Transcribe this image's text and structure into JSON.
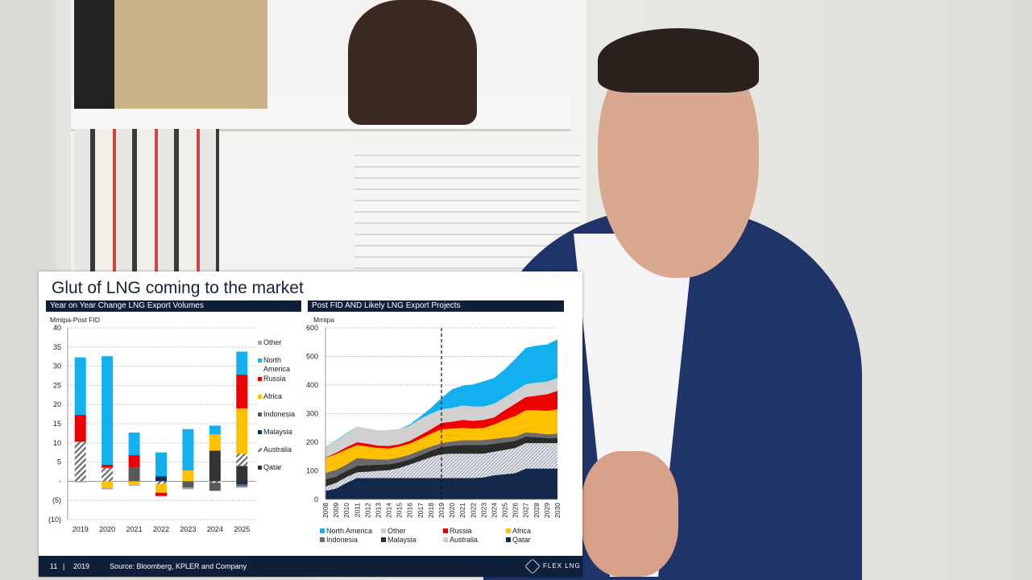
{
  "slide": {
    "title": "Glut of LNG coming to the market",
    "footer": {
      "page": "11",
      "separator": "|",
      "year": "2019",
      "source": "Source: Bloomberg, KPLER  and  Company",
      "logo": "FLEX LNG"
    }
  },
  "colors": {
    "north_america": "#12b0ef",
    "other_left": "#a6a6a6",
    "other_right": "#d0d0d0",
    "russia": "#ee0000",
    "africa": "#ffc000",
    "indonesia": "#595959",
    "malaysia": "#1c2c4c",
    "qatar_left": "#333333",
    "qatar_right": "#13284b",
    "malaysia_right": "#2b2b2b",
    "indonesia_right": "#6a6a6a",
    "navy": "#0f1f3a"
  },
  "chart_data": [
    {
      "type": "bar",
      "stacked": true,
      "header": "Year on Year Change LNG Export Volumes",
      "ylabel": "Mmtpa-Post FID",
      "ylim": [
        -10,
        40
      ],
      "yticks": [
        "(10)",
        "(5)",
        "-",
        "5",
        "10",
        "15",
        "20",
        "25",
        "30",
        "35",
        "40"
      ],
      "grid": true,
      "legend_position": "right",
      "categories": [
        "2019",
        "2020",
        "2021",
        "2022",
        "2023",
        "2024",
        "2025"
      ],
      "series": [
        {
          "name": "Qatar",
          "values": [
            0,
            0,
            0,
            0,
            0,
            8,
            4
          ]
        },
        {
          "name": "Australia",
          "values": [
            10.3,
            3.5,
            0,
            -0.7,
            0,
            -0.4,
            3.2
          ]
        },
        {
          "name": "Malaysia",
          "values": [
            0,
            0,
            0,
            1.3,
            0,
            0,
            -0.8
          ]
        },
        {
          "name": "Indonesia",
          "values": [
            0,
            0,
            3.6,
            0,
            -1.6,
            -2.1,
            -0.5
          ]
        },
        {
          "name": "Africa",
          "values": [
            0,
            -1.8,
            -1,
            -2.3,
            2.8,
            4.2,
            11.8
          ]
        },
        {
          "name": "Russia",
          "values": [
            7,
            0.8,
            3.2,
            -0.8,
            0,
            0,
            8.8
          ]
        },
        {
          "name": "North America",
          "values": [
            15,
            28.3,
            5.9,
            6.2,
            10.8,
            2.3,
            6
          ]
        },
        {
          "name": "Other",
          "values": [
            -0.3,
            -0.3,
            -0.2,
            -0.2,
            -0.5,
            0,
            -0.4
          ]
        }
      ],
      "legend": [
        "Other",
        "North America",
        "Russia",
        "Africa",
        "Indonesia",
        "Malaysia",
        "Australia",
        "Qatar"
      ]
    },
    {
      "type": "area",
      "stacked": true,
      "header": "Post FID AND Likely LNG Export Projects",
      "ylabel": "Mmtpa",
      "ylim": [
        0,
        600
      ],
      "yticks": [
        "0",
        "100",
        "200",
        "300",
        "400",
        "500",
        "600"
      ],
      "grid": true,
      "legend_position": "bottom",
      "marker_line_at": "2019",
      "x": [
        "2008",
        "2009",
        "2010",
        "2011",
        "2012",
        "2013",
        "2014",
        "2015",
        "2016",
        "2017",
        "2018",
        "2019",
        "2020",
        "2021",
        "2022",
        "2023",
        "2024",
        "2025",
        "2026",
        "2027",
        "2028",
        "2029",
        "2030"
      ],
      "series": [
        {
          "name": "Qatar",
          "values": [
            30,
            38,
            58,
            75,
            75,
            75,
            75,
            75,
            75,
            75,
            75,
            75,
            75,
            75,
            75,
            77,
            85,
            88,
            92,
            108,
            108,
            108,
            108
          ]
        },
        {
          "name": "Australia",
          "values": [
            15,
            20,
            20,
            20,
            22,
            25,
            27,
            35,
            47,
            60,
            73,
            83,
            85,
            85,
            85,
            83,
            82,
            85,
            88,
            89,
            89,
            89,
            89
          ]
        },
        {
          "name": "Malaysia",
          "values": [
            25,
            22,
            22,
            23,
            23,
            22,
            21,
            20,
            18,
            20,
            22,
            25,
            28,
            30,
            30,
            30,
            28,
            27,
            25,
            23,
            21,
            18,
            18
          ]
        },
        {
          "name": "Indonesia",
          "values": [
            23,
            23,
            23,
            27,
            22,
            18,
            17,
            17,
            17,
            17,
            15,
            14,
            15,
            17,
            17,
            18,
            17,
            17,
            15,
            15,
            14,
            13,
            15
          ]
        },
        {
          "name": "Africa",
          "values": [
            52,
            55,
            52,
            45,
            43,
            40,
            38,
            38,
            38,
            40,
            45,
            48,
            45,
            43,
            41,
            42,
            50,
            61,
            72,
            77,
            80,
            82,
            85
          ]
        },
        {
          "name": "Russia",
          "values": [
            2,
            5,
            8,
            10,
            10,
            8,
            9,
            8,
            10,
            13,
            15,
            23,
            24,
            28,
            27,
            28,
            25,
            34,
            43,
            46,
            51,
            58,
            65
          ]
        },
        {
          "name": "Other",
          "values": [
            38,
            42,
            47,
            55,
            53,
            54,
            56,
            54,
            53,
            57,
            55,
            47,
            48,
            50,
            50,
            47,
            48,
            45,
            45,
            45,
            45,
            44,
            45
          ]
        },
        {
          "name": "North America",
          "values": [
            0,
            2,
            2,
            0,
            0,
            0,
            0,
            0,
            4,
            8,
            20,
            40,
            65,
            70,
            77,
            88,
            90,
            98,
            112,
            127,
            130,
            130,
            135
          ]
        }
      ],
      "legend": [
        "North America",
        "Other",
        "Russia",
        "Africa",
        "Indonesia",
        "Malaysia",
        "Australia",
        "Qatar"
      ]
    }
  ]
}
